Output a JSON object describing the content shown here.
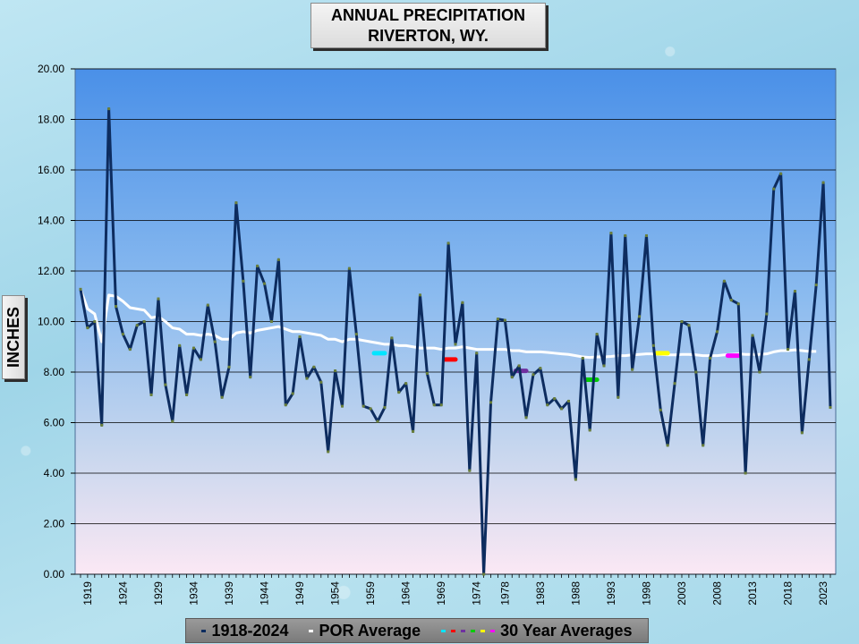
{
  "chart_data": {
    "type": "line",
    "title": [
      "ANNUAL  PRECIPITATION",
      "RIVERTON,  WY."
    ],
    "ylabel": "INCHES",
    "ylim": [
      0,
      20
    ],
    "yticks": [
      "0.00",
      "2.00",
      "4.00",
      "6.00",
      "8.00",
      "10.00",
      "12.00",
      "14.00",
      "16.00",
      "18.00",
      "20.00"
    ],
    "xlim": [
      1918,
      2024
    ],
    "xticks": [
      1919,
      1924,
      1929,
      1934,
      1939,
      1944,
      1949,
      1954,
      1959,
      1964,
      1969,
      1974,
      1978,
      1983,
      1988,
      1993,
      1998,
      2003,
      2008,
      2013,
      2018,
      2023
    ],
    "grid": true,
    "legend": [
      {
        "label": "1918-2024",
        "color": "#0d2c5f"
      },
      {
        "label": "POR Average",
        "color": "#ffffff"
      },
      {
        "label": "30 Year Averages",
        "colors": [
          "#00e5ff",
          "#ff0000",
          "#7030a0",
          "#00cc00",
          "#ffff00",
          "#ff00ff"
        ]
      }
    ],
    "series": [
      {
        "name": "1918-2024",
        "color": "#0d2c5f",
        "x": [
          1918,
          1919,
          1920,
          1921,
          1922,
          1923,
          1924,
          1925,
          1926,
          1927,
          1928,
          1929,
          1930,
          1931,
          1932,
          1933,
          1934,
          1935,
          1936,
          1937,
          1938,
          1939,
          1940,
          1941,
          1942,
          1943,
          1944,
          1945,
          1946,
          1947,
          1948,
          1949,
          1950,
          1951,
          1952,
          1953,
          1954,
          1955,
          1956,
          1957,
          1958,
          1959,
          1960,
          1961,
          1962,
          1963,
          1964,
          1965,
          1966,
          1967,
          1968,
          1969,
          1970,
          1971,
          1972,
          1973,
          1974,
          1975,
          1976,
          1977,
          1978,
          1979,
          1980,
          1981,
          1982,
          1983,
          1984,
          1985,
          1986,
          1987,
          1988,
          1989,
          1990,
          1991,
          1992,
          1993,
          1994,
          1995,
          1996,
          1997,
          1998,
          1999,
          2000,
          2001,
          2002,
          2003,
          2004,
          2005,
          2006,
          2007,
          2008,
          2009,
          2010,
          2011,
          2012,
          2013,
          2014,
          2015,
          2016,
          2017,
          2018,
          2019,
          2020,
          2021,
          2022,
          2023,
          2024
        ],
        "y": [
          11.28,
          9.75,
          10.0,
          5.9,
          18.42,
          10.6,
          9.5,
          8.9,
          9.85,
          10.0,
          7.1,
          10.9,
          7.5,
          6.05,
          9.05,
          7.1,
          8.95,
          8.5,
          10.65,
          9.2,
          7.0,
          8.2,
          14.7,
          11.6,
          7.8,
          12.2,
          11.5,
          10.0,
          12.45,
          6.7,
          7.15,
          9.4,
          7.75,
          8.2,
          7.6,
          4.85,
          8.05,
          6.65,
          12.1,
          9.5,
          6.65,
          6.55,
          6.05,
          6.6,
          9.35,
          7.2,
          7.55,
          5.65,
          11.05,
          7.95,
          6.7,
          6.7,
          13.1,
          9.1,
          10.75,
          4.1,
          8.75,
          0.0,
          6.8,
          10.1,
          10.05,
          7.8,
          8.25,
          6.2,
          7.9,
          8.15,
          6.7,
          6.95,
          6.55,
          6.85,
          3.75,
          8.55,
          5.7,
          9.5,
          8.25,
          13.5,
          7.0,
          13.4,
          8.1,
          10.2,
          13.4,
          9.05,
          6.5,
          5.1,
          7.55,
          10.0,
          9.85,
          8.0,
          5.1,
          8.55,
          9.6,
          11.6,
          10.85,
          10.7,
          4.0,
          9.45,
          8.0,
          10.3,
          15.25,
          15.85,
          8.9,
          11.2,
          5.6,
          8.5,
          11.45,
          15.5,
          6.6
        ]
      },
      {
        "name": "POR Average",
        "color": "#ffffff",
        "x": [
          1918,
          1919,
          1920,
          1921,
          1922,
          1923,
          1924,
          1925,
          1926,
          1927,
          1928,
          1929,
          1930,
          1931,
          1932,
          1933,
          1934,
          1935,
          1936,
          1937,
          1938,
          1939,
          1940,
          1941,
          1942,
          1943,
          1944,
          1945,
          1946,
          1947,
          1948,
          1949,
          1950,
          1951,
          1952,
          1953,
          1954,
          1955,
          1956,
          1957,
          1958,
          1959,
          1960,
          1961,
          1962,
          1963,
          1964,
          1965,
          1966,
          1967,
          1968,
          1969,
          1970,
          1971,
          1972,
          1973,
          1974,
          1975,
          1976,
          1977,
          1978,
          1979,
          1980,
          1981,
          1982,
          1983,
          1984,
          1985,
          1986,
          1987,
          1988,
          1989,
          1990,
          1991,
          1992,
          1993,
          1994,
          1995,
          1996,
          1997,
          1998,
          1999,
          2000,
          2001,
          2002,
          2003,
          2004,
          2005,
          2006,
          2007,
          2008,
          2009,
          2010,
          2011,
          2012,
          2013,
          2014,
          2015,
          2016,
          2017,
          2018,
          2019,
          2020,
          2021,
          2022
        ],
        "y": [
          11.28,
          10.5,
          10.3,
          9.2,
          11.05,
          11.0,
          10.8,
          10.55,
          10.5,
          10.45,
          10.15,
          10.2,
          10.0,
          9.75,
          9.7,
          9.5,
          9.5,
          9.45,
          9.5,
          9.45,
          9.3,
          9.3,
          9.55,
          9.6,
          9.55,
          9.65,
          9.7,
          9.75,
          9.8,
          9.7,
          9.6,
          9.6,
          9.55,
          9.5,
          9.45,
          9.3,
          9.3,
          9.2,
          9.3,
          9.3,
          9.25,
          9.2,
          9.15,
          9.1,
          9.1,
          9.05,
          9.05,
          9.0,
          8.95,
          8.95,
          8.95,
          8.9,
          8.95,
          8.95,
          9.0,
          8.95,
          8.9,
          8.9,
          8.9,
          8.9,
          8.9,
          8.85,
          8.85,
          8.8,
          8.8,
          8.8,
          8.78,
          8.75,
          8.72,
          8.7,
          8.65,
          8.6,
          8.58,
          8.6,
          8.6,
          8.62,
          8.65,
          8.65,
          8.68,
          8.7,
          8.72,
          8.72,
          8.7,
          8.68,
          8.68,
          8.7,
          8.7,
          8.68,
          8.65,
          8.65,
          8.65,
          8.68,
          8.7,
          8.72,
          8.7,
          8.7,
          8.7,
          8.72,
          8.8,
          8.85,
          8.85,
          8.88,
          8.85,
          8.82,
          8.82
        ]
      }
    ],
    "thirty_year_averages": [
      {
        "x_start": 1959.5,
        "x_end": 1961,
        "y": 8.75,
        "color": "#00e5ff"
      },
      {
        "x_start": 1969.5,
        "x_end": 1971,
        "y": 8.5,
        "color": "#ff0000"
      },
      {
        "x_start": 1979.5,
        "x_end": 1981,
        "y": 8.05,
        "color": "#7030a0"
      },
      {
        "x_start": 1989.5,
        "x_end": 1991,
        "y": 7.7,
        "color": "#00cc00"
      },
      {
        "x_start": 1999.5,
        "x_end": 2001,
        "y": 8.75,
        "color": "#ffff00"
      },
      {
        "x_start": 2009.5,
        "x_end": 2011,
        "y": 8.65,
        "color": "#ff00ff"
      }
    ]
  },
  "colors": {
    "plot_top": "#4a90e8",
    "plot_mid": "#9cc4ee",
    "plot_bottom": "#fbe8f4",
    "line": "#0d2c5f",
    "por_line": "#ffffff"
  }
}
